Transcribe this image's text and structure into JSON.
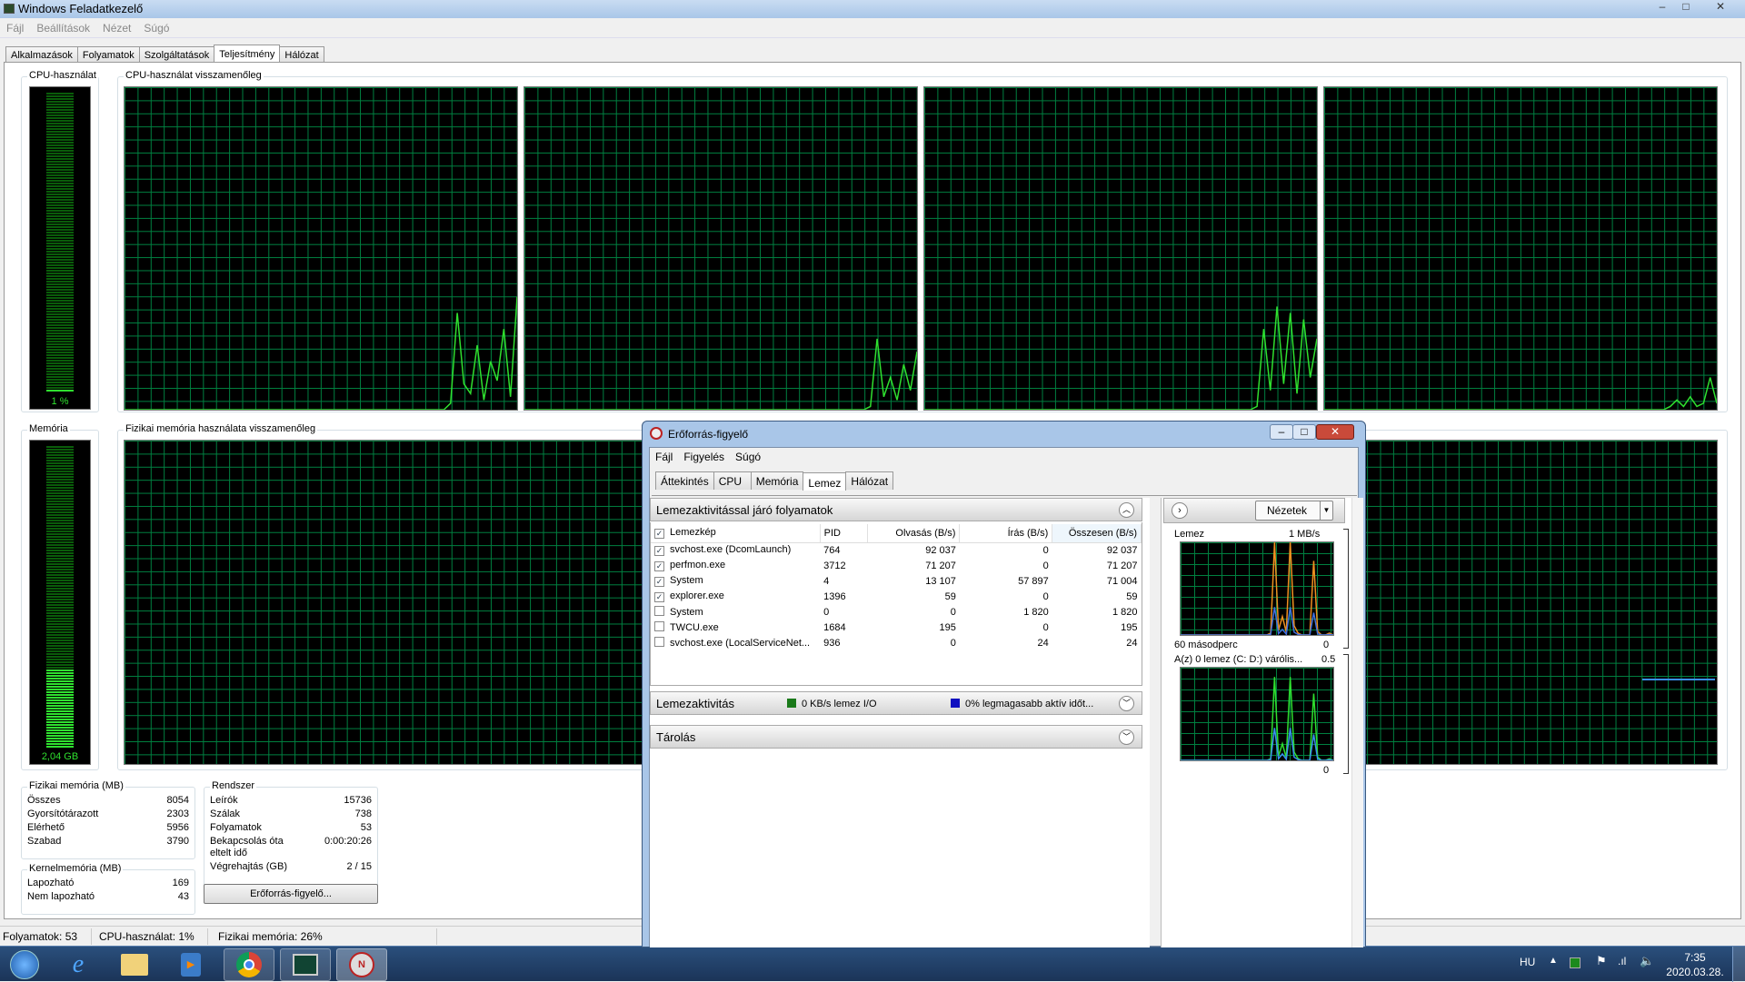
{
  "window": {
    "title": "Windows Feladatkezelő",
    "controls": [
      "–",
      "□",
      "✕"
    ]
  },
  "menu": [
    "Fájl",
    "Beállítások",
    "Nézet",
    "Súgó"
  ],
  "tabs": [
    "Alkalmazások",
    "Folyamatok",
    "Szolgáltatások",
    "Teljesítmény",
    "Hálózat"
  ],
  "active_tab": "Teljesítmény",
  "cpu": {
    "label": "CPU-használat",
    "value": "1 %",
    "percent": 1,
    "history_label": "CPU-használat visszamenőleg",
    "cores": [
      [
        0,
        0,
        0,
        0,
        0,
        0,
        0,
        0,
        0,
        0,
        0,
        0,
        0,
        0,
        0,
        0,
        0,
        0,
        0,
        0,
        0,
        0,
        0,
        0,
        0,
        0,
        0,
        0,
        0,
        0,
        0,
        0,
        0,
        0,
        0,
        0,
        0,
        0,
        0,
        0,
        0,
        0,
        0,
        0,
        0,
        0,
        0,
        0,
        0,
        2,
        30,
        8,
        5,
        20,
        3,
        15,
        9,
        25,
        4,
        35
      ],
      [
        0,
        0,
        0,
        0,
        0,
        0,
        0,
        0,
        0,
        0,
        0,
        0,
        0,
        0,
        0,
        0,
        0,
        0,
        0,
        0,
        0,
        0,
        0,
        0,
        0,
        0,
        0,
        0,
        0,
        0,
        0,
        0,
        0,
        0,
        0,
        0,
        0,
        0,
        0,
        0,
        0,
        0,
        0,
        0,
        0,
        0,
        0,
        0,
        0,
        0,
        0,
        0,
        1,
        22,
        4,
        10,
        3,
        14,
        6,
        18
      ],
      [
        0,
        0,
        0,
        0,
        0,
        0,
        0,
        0,
        0,
        0,
        0,
        0,
        0,
        0,
        0,
        0,
        0,
        0,
        0,
        0,
        0,
        0,
        0,
        0,
        0,
        0,
        0,
        0,
        0,
        0,
        0,
        0,
        0,
        0,
        0,
        0,
        0,
        0,
        0,
        0,
        0,
        0,
        0,
        0,
        0,
        0,
        0,
        0,
        0,
        0,
        1,
        25,
        6,
        32,
        8,
        30,
        5,
        28,
        10,
        22
      ],
      [
        0,
        0,
        0,
        0,
        0,
        0,
        0,
        0,
        0,
        0,
        0,
        0,
        0,
        0,
        0,
        0,
        0,
        0,
        0,
        0,
        0,
        0,
        0,
        0,
        0,
        0,
        0,
        0,
        0,
        0,
        0,
        0,
        0,
        0,
        0,
        0,
        0,
        0,
        0,
        0,
        0,
        0,
        0,
        0,
        0,
        0,
        0,
        0,
        0,
        0,
        0,
        0,
        1,
        3,
        1,
        4,
        1,
        2,
        10,
        2
      ]
    ]
  },
  "memory": {
    "label": "Memória",
    "value": "2,04 GB",
    "percent": 26,
    "history_label": "Fizikai memória használata visszamenőleg"
  },
  "physical": {
    "title": "Fizikai memória (MB)",
    "rows": [
      [
        "Összes",
        "8054"
      ],
      [
        "Gyorsítótárazott",
        "2303"
      ],
      [
        "Elérhető",
        "5956"
      ],
      [
        "Szabad",
        "3790"
      ]
    ]
  },
  "kernel": {
    "title": "Kernelmemória (MB)",
    "rows": [
      [
        "Lapozható",
        "169"
      ],
      [
        "Nem lapozható",
        "43"
      ]
    ]
  },
  "system": {
    "title": "Rendszer",
    "rows": [
      [
        "Leírók",
        "15736"
      ],
      [
        "Szálak",
        "738"
      ],
      [
        "Folyamatok",
        "53"
      ],
      [
        "Bekapcsolás óta eltelt idő",
        "0:00:20:26"
      ],
      [
        "Végrehajtás (GB)",
        "2 / 15"
      ]
    ]
  },
  "resmon_button": "Erőforrás-figyelő...",
  "status": {
    "processes": "Folyamatok: 53",
    "cpu": "CPU-használat: 1%",
    "memory": "Fizikai memória: 26%"
  },
  "taskbar": {
    "apps": [
      "start",
      "internet-explorer",
      "file-explorer",
      "media-player",
      "chrome",
      "task-manager",
      "resource-monitor"
    ],
    "lang": "HU",
    "time": "7:35",
    "date": "2020.03.28."
  },
  "resmon": {
    "title": "Erőforrás-figyelő",
    "menu": [
      "Fájl",
      "Figyelés",
      "Súgó"
    ],
    "tabs": [
      "Áttekintés",
      "CPU",
      "Memória",
      "Lemez",
      "Hálózat"
    ],
    "active_tab": "Lemez",
    "section1": "Lemezaktivitással járó folyamatok",
    "columns": [
      "Lemezkép",
      "PID",
      "Olvasás (B/s)",
      "Írás (B/s)",
      "Összesen (B/s)"
    ],
    "rows": [
      {
        "checked": true,
        "name": "svchost.exe (DcomLaunch)",
        "pid": "764",
        "read": "92 037",
        "write": "0",
        "total": "92 037"
      },
      {
        "checked": true,
        "name": "perfmon.exe",
        "pid": "3712",
        "read": "71 207",
        "write": "0",
        "total": "71 207"
      },
      {
        "checked": true,
        "name": "System",
        "pid": "4",
        "read": "13 107",
        "write": "57 897",
        "total": "71 004"
      },
      {
        "checked": true,
        "name": "explorer.exe",
        "pid": "1396",
        "read": "59",
        "write": "0",
        "total": "59"
      },
      {
        "checked": false,
        "name": "System",
        "pid": "0",
        "read": "0",
        "write": "1 820",
        "total": "1 820"
      },
      {
        "checked": false,
        "name": "TWCU.exe",
        "pid": "1684",
        "read": "195",
        "write": "0",
        "total": "195"
      },
      {
        "checked": false,
        "name": "svchost.exe (LocalServiceNet...",
        "pid": "936",
        "read": "0",
        "write": "24",
        "total": "24"
      }
    ],
    "section2": "Lemezaktivitás",
    "io": "0 KB/s lemez I/O",
    "io_color": "#1a7a1a",
    "active": "0% legmagasabb aktív időt...",
    "active_color": "#1010c0",
    "section3": "Tárolás",
    "views_button": "Nézetek",
    "disk_graph": {
      "title": "Lemez",
      "max": "1 MB/s",
      "time": "60 másodperc",
      "min": "0"
    },
    "queue_graph": {
      "title": "A(z) 0 lemez (C: D:) várólis...",
      "max": "0.5",
      "min": "0"
    }
  }
}
